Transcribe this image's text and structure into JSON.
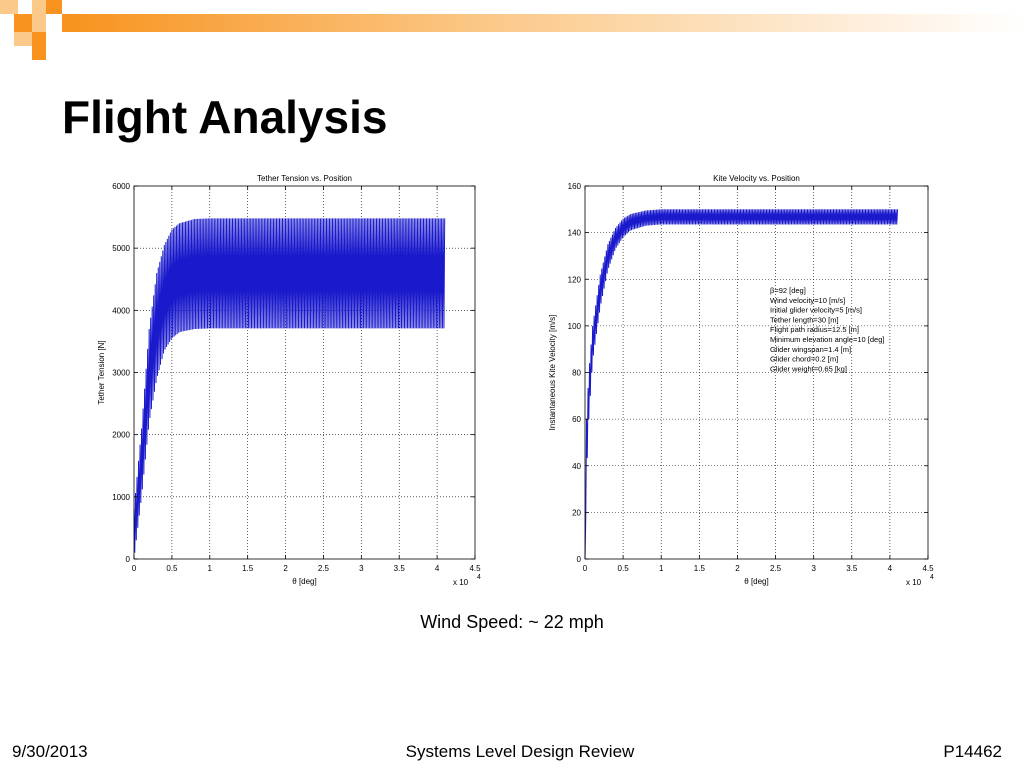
{
  "slide": {
    "title": "Flight Analysis",
    "subtitle": "Wind Speed:  ~ 22 mph",
    "footer_left": "9/30/2013",
    "footer_center": "Systems Level Design Review",
    "footer_right": "P14462",
    "accent_color": "#f7931e",
    "accent_light": "#fbc98a"
  },
  "chart_data": [
    {
      "type": "line",
      "title": "Tether Tension vs. Position",
      "xlabel": "θ [deg]",
      "ylabel": "Tether Tension [N]",
      "xlim": [
        0,
        4.5
      ],
      "ylim": [
        0,
        6000
      ],
      "x_multiplier": "x 10",
      "x_multiplier_exp": "4",
      "xticks": [
        "0",
        "0.5",
        "1",
        "1.5",
        "2",
        "2.5",
        "3",
        "3.5",
        "4",
        "4.5"
      ],
      "yticks": [
        "0",
        "1000",
        "2000",
        "3000",
        "4000",
        "5000",
        "6000"
      ],
      "grid": true,
      "line_color": "#1a1acc",
      "series": [
        {
          "oscillation": true,
          "x_end": 4.1,
          "upper_envelope": [
            [
              0,
              800
            ],
            [
              0.1,
              2100
            ],
            [
              0.2,
              3700
            ],
            [
              0.3,
              4600
            ],
            [
              0.4,
              5050
            ],
            [
              0.5,
              5300
            ],
            [
              0.6,
              5400
            ],
            [
              0.8,
              5470
            ],
            [
              1.0,
              5480
            ],
            [
              4.1,
              5480
            ]
          ],
          "lower_envelope": [
            [
              0,
              0
            ],
            [
              0.1,
              1000
            ],
            [
              0.2,
              2200
            ],
            [
              0.3,
              2900
            ],
            [
              0.4,
              3350
            ],
            [
              0.5,
              3550
            ],
            [
              0.6,
              3650
            ],
            [
              0.8,
              3700
            ],
            [
              1.0,
              3710
            ],
            [
              4.1,
              3710
            ]
          ]
        }
      ]
    },
    {
      "type": "line",
      "title": "Kite Velocity vs. Position",
      "xlabel": "θ [deg]",
      "ylabel": "Instantaneous Kite Velocity [m/s]",
      "xlim": [
        0,
        4.5
      ],
      "ylim": [
        0,
        160
      ],
      "x_multiplier": "x 10",
      "x_multiplier_exp": "4",
      "xticks": [
        "0",
        "0.5",
        "1",
        "1.5",
        "2",
        "2.5",
        "3",
        "3.5",
        "4",
        "4.5"
      ],
      "yticks": [
        "0",
        "20",
        "40",
        "60",
        "80",
        "100",
        "120",
        "140",
        "160"
      ],
      "grid": true,
      "line_color": "#1a1acc",
      "annotations": [
        "β=92 [deg]",
        "Wind velocity=10 [m/s]",
        "Initial glider velocity=5 [m/s]",
        "Tether length=30 [m]",
        "Flight path radius=12.5 [m]",
        "Minimum elevation angle=10 [deg]",
        "Glider wingspan=1.4 [m]",
        "Glider chord=0.2 [m]",
        "Glider weight=0.65 [kg]"
      ],
      "series": [
        {
          "oscillation": true,
          "x_end": 4.1,
          "upper_envelope": [
            [
              0,
              0
            ],
            [
              0.02,
              60
            ],
            [
              0.05,
              80
            ],
            [
              0.1,
              100
            ],
            [
              0.2,
              122
            ],
            [
              0.3,
              135
            ],
            [
              0.4,
              142
            ],
            [
              0.5,
              146
            ],
            [
              0.6,
              148
            ],
            [
              0.8,
              149.5
            ],
            [
              1.0,
              150
            ],
            [
              4.1,
              150
            ]
          ],
          "lower_envelope": [
            [
              0,
              0
            ],
            [
              0.02,
              35
            ],
            [
              0.05,
              60
            ],
            [
              0.1,
              85
            ],
            [
              0.2,
              108
            ],
            [
              0.3,
              124
            ],
            [
              0.4,
              133
            ],
            [
              0.5,
              138
            ],
            [
              0.6,
              141
            ],
            [
              0.8,
              143
            ],
            [
              1.0,
              143.5
            ],
            [
              4.1,
              143.5
            ]
          ]
        }
      ]
    }
  ]
}
